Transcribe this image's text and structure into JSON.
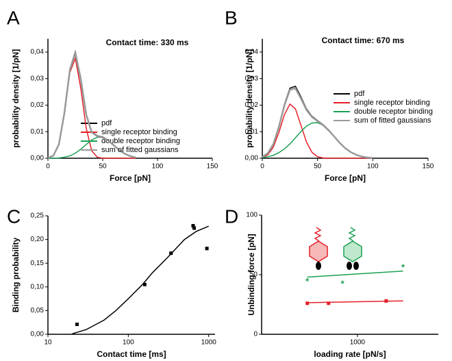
{
  "chart_data": [
    {
      "type": "line",
      "panel": "A",
      "title": "Contact time: 330 ms",
      "xlabel": "Force [pN]",
      "ylabel": "probability density [1/pN]",
      "xlim": [
        0,
        150
      ],
      "xticks": [
        0,
        50,
        100,
        150
      ],
      "ylim": [
        0,
        0.045
      ],
      "yticks": [
        {
          "value": 0,
          "label": "0,00"
        },
        {
          "value": 0.01,
          "label": "0,01"
        },
        {
          "value": 0.02,
          "label": "0,02"
        },
        {
          "value": 0.03,
          "label": "0,03"
        },
        {
          "value": 0.04,
          "label": "0,04"
        }
      ],
      "legend": "center-right",
      "x": [
        0,
        5,
        10,
        15,
        20,
        25,
        30,
        35,
        40,
        45,
        50,
        55,
        60,
        65,
        70,
        75,
        80
      ],
      "series": [
        {
          "name": "pdf",
          "color": "#000000",
          "values": [
            0.0001,
            0.0011,
            0.0054,
            0.0173,
            0.0336,
            0.0401,
            0.0302,
            0.0166,
            0.0099,
            0.0085,
            0.008,
            0.0068,
            0.005,
            0.0032,
            0.0018,
            0.0009,
            0.0003
          ]
        },
        {
          "name": "single receptor binding",
          "color": "#e41e26",
          "values": [
            0.0001,
            0.001,
            0.0051,
            0.0166,
            0.0323,
            0.0376,
            0.0263,
            0.0111,
            0.0028,
            0.0004,
            0,
            0,
            0,
            0,
            0,
            0,
            0
          ]
        },
        {
          "name": "double receptor binding",
          "color": "#1aa053",
          "values": [
            0,
            0,
            0.0001,
            0.0004,
            0.0009,
            0.0019,
            0.0034,
            0.0052,
            0.0069,
            0.0079,
            0.0078,
            0.0066,
            0.0049,
            0.0031,
            0.0017,
            0.0008,
            0.0003
          ]
        },
        {
          "name": "sum of fitted gaussians",
          "color": "#999999",
          "values": [
            0.0001,
            0.001,
            0.0052,
            0.017,
            0.0332,
            0.0395,
            0.0297,
            0.0163,
            0.0097,
            0.0083,
            0.0078,
            0.0066,
            0.0049,
            0.0031,
            0.0017,
            0.0008,
            0.0003
          ]
        }
      ]
    },
    {
      "type": "line",
      "panel": "B",
      "title": "Contact time: 670 ms",
      "xlabel": "Force [pN]",
      "ylabel": "probability density [1/pN]",
      "xlim": [
        0,
        150
      ],
      "xticks": [
        0,
        50,
        100,
        150
      ],
      "ylim": [
        0,
        0.045
      ],
      "yticks": [
        {
          "value": 0,
          "label": "0,00"
        },
        {
          "value": 0.01,
          "label": "0,01"
        },
        {
          "value": 0.02,
          "label": "0,02"
        },
        {
          "value": 0.03,
          "label": "0,03"
        },
        {
          "value": 0.04,
          "label": "0,04"
        }
      ],
      "legend": "upper-right",
      "x": [
        0,
        5,
        10,
        15,
        20,
        25,
        30,
        35,
        40,
        45,
        50,
        55,
        60,
        65,
        70,
        75,
        80,
        85,
        90,
        95,
        100
      ],
      "series": [
        {
          "name": "pdf",
          "color": "#000000",
          "values": [
            0.0005,
            0.002,
            0.0055,
            0.0121,
            0.0203,
            0.0264,
            0.0271,
            0.0231,
            0.0186,
            0.0158,
            0.0142,
            0.0127,
            0.0107,
            0.0083,
            0.0059,
            0.0039,
            0.0024,
            0.0013,
            0.0006,
            0.0003,
            0.0001
          ]
        },
        {
          "name": "single receptor binding",
          "color": "#e41e26",
          "values": [
            0.0003,
            0.0013,
            0.0042,
            0.0097,
            0.0164,
            0.0204,
            0.0186,
            0.0124,
            0.0061,
            0.0022,
            0.0006,
            0.0001,
            0,
            0,
            0,
            0,
            0,
            0,
            0,
            0,
            0
          ]
        },
        {
          "name": "double receptor binding",
          "color": "#1aa053",
          "values": [
            0.0002,
            0.0006,
            0.0011,
            0.0021,
            0.0035,
            0.0054,
            0.0077,
            0.0101,
            0.0121,
            0.0133,
            0.0134,
            0.0124,
            0.0105,
            0.0082,
            0.0058,
            0.0038,
            0.0023,
            0.0013,
            0.0006,
            0.0003,
            0.0001
          ]
        },
        {
          "name": "sum of fitted gaussians",
          "color": "#999999",
          "values": [
            0.0005,
            0.0019,
            0.0053,
            0.0118,
            0.0199,
            0.0258,
            0.0263,
            0.0225,
            0.0182,
            0.0155,
            0.014,
            0.0125,
            0.0105,
            0.0082,
            0.0058,
            0.0038,
            0.0023,
            0.0013,
            0.0006,
            0.0003,
            0.0001
          ]
        }
      ]
    },
    {
      "type": "scatter",
      "panel": "C",
      "xlabel": "Contact time [ms]",
      "ylabel": "Binding probability",
      "xscale": "log",
      "xlim": [
        10,
        1200
      ],
      "xticks": [
        10,
        100,
        1000
      ],
      "ylim": [
        0,
        0.25
      ],
      "yticks": [
        {
          "value": 0,
          "label": "0,00"
        },
        {
          "value": 0.05,
          "label": "0,05"
        },
        {
          "value": 0.1,
          "label": "0,10"
        },
        {
          "value": 0.15,
          "label": "0,15"
        },
        {
          "value": 0.2,
          "label": "0,20"
        },
        {
          "value": 0.25,
          "label": "0,25"
        }
      ],
      "series": [
        {
          "type": "scatter",
          "marker": "square",
          "color": "#000000",
          "x": [
            23,
            160,
            340,
            640,
            660,
            950
          ],
          "values": [
            0.021,
            0.105,
            0.171,
            0.229,
            0.224,
            0.181
          ]
        },
        {
          "type": "line",
          "color": "#000000",
          "x": [
            20,
            30,
            50,
            70,
            100,
            150,
            200,
            300,
            500,
            700,
            1000
          ],
          "values": [
            0.001,
            0.01,
            0.03,
            0.05,
            0.075,
            0.105,
            0.13,
            0.16,
            0.2,
            0.217,
            0.228
          ]
        }
      ]
    },
    {
      "type": "scatter",
      "panel": "D",
      "xlabel": "loading rate [pN/s]",
      "ylabel": "Unbinding force [pN]",
      "xscale": "log",
      "xlim": [
        100,
        7000
      ],
      "xticks": [
        1000
      ],
      "ylim": [
        0,
        100
      ],
      "yticks": [
        0,
        50,
        100
      ],
      "series": [
        {
          "type": "scatter",
          "marker": "square",
          "color": "#e41e26",
          "x": [
            300,
            500,
            2000
          ],
          "values": [
            26,
            26,
            28
          ]
        },
        {
          "type": "line",
          "color": "#e41e26",
          "x": [
            300,
            3000
          ],
          "values": [
            26.5,
            28
          ]
        },
        {
          "type": "scatter",
          "marker": "star",
          "color": "#1aa053",
          "x": [
            300,
            700,
            3000
          ],
          "values": [
            45,
            43,
            57
          ]
        },
        {
          "type": "line",
          "color": "#1aa053",
          "x": [
            300,
            3000
          ],
          "values": [
            48,
            53
          ]
        }
      ]
    }
  ]
}
